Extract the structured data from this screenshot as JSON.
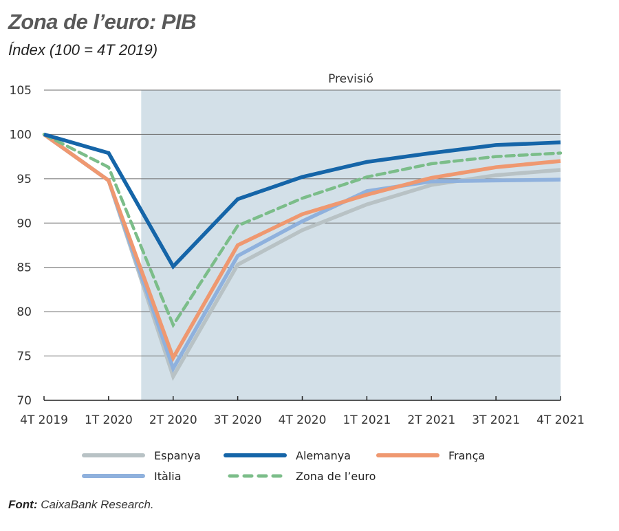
{
  "title": "Zona de l’euro: PIB",
  "subtitle": "Índex  (100 = 4T 2019)",
  "source_label": "Font:",
  "source_text": " CaixaBank Research.",
  "chart_data": {
    "type": "line",
    "title": "Zona de l’euro: PIB",
    "subtitle": "Índex (100 = 4T 2019)",
    "xlabel": "",
    "ylabel": "",
    "x": [
      "4T 2019",
      "1T 2020",
      "2T 2020",
      "3T 2020",
      "4T 2020",
      "1T 2021",
      "2T 2021",
      "3T 2021",
      "4T 2021"
    ],
    "ylim": [
      70,
      105
    ],
    "yticks": [
      70,
      75,
      80,
      85,
      90,
      95,
      100,
      105
    ],
    "grid": true,
    "shaded_region": {
      "label": "Previsió",
      "from": "between 1T 2020 and 2T 2020",
      "to": "4T 2021",
      "color": "#d3e0e8"
    },
    "legend_position": "bottom",
    "series": [
      {
        "name": "Espanya",
        "color": "#b8c2c5",
        "style": "solid",
        "values": [
          100,
          94.8,
          72.7,
          85.3,
          89.2,
          92.1,
          94.3,
          95.4,
          96.0
        ]
      },
      {
        "name": "Alemanya",
        "color": "#1565a8",
        "style": "solid",
        "values": [
          100,
          97.9,
          85.1,
          92.7,
          95.2,
          96.9,
          97.9,
          98.8,
          99.1
        ]
      },
      {
        "name": "França",
        "color": "#ef9870",
        "style": "solid",
        "values": [
          100,
          94.8,
          74.8,
          87.5,
          91.0,
          93.2,
          95.1,
          96.3,
          97.0
        ]
      },
      {
        "name": "Itàlia",
        "color": "#8fb1dd",
        "style": "solid",
        "values": [
          100,
          94.8,
          73.6,
          86.3,
          90.2,
          93.6,
          94.7,
          94.8,
          94.9
        ]
      },
      {
        "name": "Zona de l’euro",
        "color": "#7bbd89",
        "style": "dashed",
        "values": [
          100,
          96.3,
          78.5,
          89.7,
          92.8,
          95.2,
          96.7,
          97.5,
          97.9
        ]
      }
    ]
  }
}
